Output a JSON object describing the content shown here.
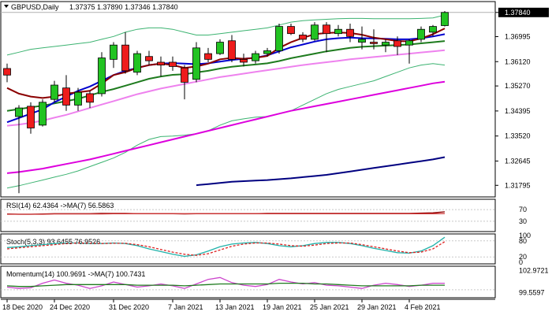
{
  "chart_data": {
    "type": "candlestick",
    "symbol_label": "GBPUSD,Daily",
    "ohlc_label": "1.37375 1.37890 1.37346 1.37840",
    "last_price": 1.3784,
    "x_tick_labels": [
      "18 Dec 2020",
      "24 Dec 2020",
      "31 Dec 2020",
      "7 Jan 2021",
      "13 Jan 2021",
      "19 Jan 2021",
      "25 Jan 2021",
      "29 Jan 2021",
      "4 Feb 2021"
    ],
    "x_tick_bar_index": [
      0,
      4,
      9,
      14,
      18,
      22,
      26,
      30,
      34
    ],
    "price_axis": {
      "ylim": [
        1.3139,
        1.3822
      ],
      "ticks": [
        1.3784,
        1.36995,
        1.3612,
        1.3527,
        1.34395,
        1.3352,
        1.32645,
        1.31795
      ],
      "tick_labels": [
        "1.37840",
        "1.36995",
        "1.36120",
        "1.35270",
        "1.34395",
        "1.33520",
        "1.32645",
        "1.31795"
      ]
    },
    "candles": [
      {
        "o": 1.3588,
        "h": 1.3605,
        "l": 1.354,
        "c": 1.3565
      },
      {
        "o": 1.342,
        "h": 1.346,
        "l": 1.3152,
        "c": 1.345
      },
      {
        "o": 1.3456,
        "h": 1.347,
        "l": 1.336,
        "c": 1.338
      },
      {
        "o": 1.339,
        "h": 1.348,
        "l": 1.3385,
        "c": 1.347
      },
      {
        "o": 1.348,
        "h": 1.3545,
        "l": 1.347,
        "c": 1.353
      },
      {
        "o": 1.352,
        "h": 1.3565,
        "l": 1.344,
        "c": 1.346
      },
      {
        "o": 1.346,
        "h": 1.352,
        "l": 1.344,
        "c": 1.3505
      },
      {
        "o": 1.35,
        "h": 1.351,
        "l": 1.345,
        "c": 1.347
      },
      {
        "o": 1.35,
        "h": 1.3645,
        "l": 1.349,
        "c": 1.3625
      },
      {
        "o": 1.362,
        "h": 1.368,
        "l": 1.359,
        "c": 1.367
      },
      {
        "o": 1.367,
        "h": 1.3715,
        "l": 1.357,
        "c": 1.358
      },
      {
        "o": 1.3575,
        "h": 1.365,
        "l": 1.3565,
        "c": 1.364
      },
      {
        "o": 1.363,
        "h": 1.365,
        "l": 1.36,
        "c": 1.3615
      },
      {
        "o": 1.361,
        "h": 1.363,
        "l": 1.356,
        "c": 1.36
      },
      {
        "o": 1.361,
        "h": 1.363,
        "l": 1.358,
        "c": 1.3595
      },
      {
        "o": 1.359,
        "h": 1.36,
        "l": 1.348,
        "c": 1.354
      },
      {
        "o": 1.355,
        "h": 1.368,
        "l": 1.354,
        "c": 1.366
      },
      {
        "o": 1.364,
        "h": 1.366,
        "l": 1.361,
        "c": 1.362
      },
      {
        "o": 1.364,
        "h": 1.369,
        "l": 1.3635,
        "c": 1.368
      },
      {
        "o": 1.3685,
        "h": 1.3705,
        "l": 1.361,
        "c": 1.362
      },
      {
        "o": 1.362,
        "h": 1.364,
        "l": 1.3595,
        "c": 1.361
      },
      {
        "o": 1.3615,
        "h": 1.365,
        "l": 1.3605,
        "c": 1.364
      },
      {
        "o": 1.364,
        "h": 1.366,
        "l": 1.363,
        "c": 1.365
      },
      {
        "o": 1.365,
        "h": 1.3745,
        "l": 1.364,
        "c": 1.3735
      },
      {
        "o": 1.3735,
        "h": 1.3745,
        "l": 1.3705,
        "c": 1.371
      },
      {
        "o": 1.3705,
        "h": 1.3715,
        "l": 1.368,
        "c": 1.369
      },
      {
        "o": 1.369,
        "h": 1.375,
        "l": 1.3685,
        "c": 1.374
      },
      {
        "o": 1.374,
        "h": 1.375,
        "l": 1.3645,
        "c": 1.371
      },
      {
        "o": 1.371,
        "h": 1.374,
        "l": 1.37,
        "c": 1.3725
      },
      {
        "o": 1.3725,
        "h": 1.3745,
        "l": 1.368,
        "c": 1.37
      },
      {
        "o": 1.368,
        "h": 1.3735,
        "l": 1.3655,
        "c": 1.369
      },
      {
        "o": 1.368,
        "h": 1.3725,
        "l": 1.3655,
        "c": 1.3675
      },
      {
        "o": 1.367,
        "h": 1.369,
        "l": 1.3645,
        "c": 1.368
      },
      {
        "o": 1.3685,
        "h": 1.37,
        "l": 1.3635,
        "c": 1.3665
      },
      {
        "o": 1.367,
        "h": 1.369,
        "l": 1.3605,
        "c": 1.3685
      },
      {
        "o": 1.369,
        "h": 1.3735,
        "l": 1.368,
        "c": 1.3725
      },
      {
        "o": 1.3715,
        "h": 1.374,
        "l": 1.37,
        "c": 1.3735
      },
      {
        "o": 1.3738,
        "h": 1.3789,
        "l": 1.3735,
        "c": 1.3784
      }
    ],
    "overlay_lines": [
      {
        "id": "bb-upper",
        "color": "#3cb371",
        "width": 1,
        "values": [
          1.3635,
          1.3645,
          1.3655,
          1.366,
          1.3665,
          1.367,
          1.3675,
          1.368,
          1.369,
          1.37,
          1.3715,
          1.3725,
          1.373,
          1.373,
          1.3725,
          1.3715,
          1.3705,
          1.3705,
          1.371,
          1.3715,
          1.372,
          1.3725,
          1.373,
          1.374,
          1.375,
          1.3755,
          1.3758,
          1.376,
          1.3762,
          1.3763,
          1.3763,
          1.3762,
          1.3762,
          1.3762,
          1.3762,
          1.3763,
          1.3765,
          1.3775
        ]
      },
      {
        "id": "bb-lower",
        "color": "#3cb371",
        "width": 1,
        "values": [
          1.317,
          1.3178,
          1.3188,
          1.3198,
          1.3208,
          1.3218,
          1.323,
          1.3245,
          1.326,
          1.3275,
          1.3295,
          1.332,
          1.334,
          1.335,
          1.3352,
          1.3355,
          1.336,
          1.337,
          1.339,
          1.3405,
          1.3412,
          1.3418,
          1.342,
          1.343,
          1.344,
          1.346,
          1.348,
          1.35,
          1.3515,
          1.3525,
          1.3535,
          1.3545,
          1.356,
          1.3575,
          1.359,
          1.36,
          1.3605,
          1.36
        ]
      },
      {
        "id": "ma-magenta-light",
        "color": "#ee82ee",
        "width": 2,
        "values": [
          1.3388,
          1.3392,
          1.3398,
          1.3406,
          1.3416,
          1.3426,
          1.3438,
          1.345,
          1.3462,
          1.3474,
          1.3486,
          1.3498,
          1.3508,
          1.3518,
          1.3526,
          1.3534,
          1.3542,
          1.355,
          1.3558,
          1.3564,
          1.357,
          1.3576,
          1.3582,
          1.3588,
          1.3594,
          1.36,
          1.3605,
          1.361,
          1.3615,
          1.362,
          1.3624,
          1.3628,
          1.3632,
          1.3636,
          1.364,
          1.3644,
          1.3648,
          1.3652
        ]
      },
      {
        "id": "ma-green",
        "color": "#1e7b1e",
        "width": 2,
        "values": [
          1.344,
          1.3446,
          1.3452,
          1.3458,
          1.3466,
          1.3474,
          1.3482,
          1.3494,
          1.3506,
          1.3516,
          1.3528,
          1.354,
          1.3552,
          1.356,
          1.3566,
          1.3568,
          1.3574,
          1.358,
          1.3588,
          1.3594,
          1.3598,
          1.3602,
          1.3606,
          1.3614,
          1.3624,
          1.3632,
          1.364,
          1.3648,
          1.3654,
          1.366,
          1.3664,
          1.3666,
          1.3668,
          1.367,
          1.3672,
          1.3676,
          1.368,
          1.3684
        ]
      },
      {
        "id": "ma-blue",
        "color": "#0000cd",
        "width": 2,
        "values": [
          1.34,
          1.3415,
          1.343,
          1.3445,
          1.347,
          1.349,
          1.351,
          1.3525,
          1.3545,
          1.3565,
          1.358,
          1.359,
          1.36,
          1.3605,
          1.3607,
          1.3605,
          1.3603,
          1.3606,
          1.3612,
          1.3618,
          1.3622,
          1.3626,
          1.3634,
          1.3648,
          1.3662,
          1.3672,
          1.3682,
          1.369,
          1.3694,
          1.3696,
          1.3694,
          1.3693,
          1.3692,
          1.369,
          1.369,
          1.3694,
          1.37,
          1.3708
        ]
      },
      {
        "id": "ma-darkred",
        "color": "#8b0000",
        "width": 2,
        "values": [
          1.352,
          1.35,
          1.349,
          1.3485,
          1.349,
          1.35,
          1.3505,
          1.351,
          1.3535,
          1.3565,
          1.3575,
          1.359,
          1.36,
          1.3605,
          1.36,
          1.359,
          1.3595,
          1.3605,
          1.362,
          1.3625,
          1.3622,
          1.3625,
          1.3632,
          1.366,
          1.368,
          1.3695,
          1.3708,
          1.3712,
          1.3714,
          1.3712,
          1.3706,
          1.3696,
          1.369,
          1.3684,
          1.3683,
          1.3693,
          1.3708,
          1.3728
        ]
      },
      {
        "id": "ma-magenta",
        "color": "#dd00dd",
        "width": 2,
        "values": [
          1.3222,
          1.3226,
          1.3232,
          1.3238,
          1.3246,
          1.3254,
          1.3262,
          1.327,
          1.328,
          1.329,
          1.33,
          1.331,
          1.332,
          1.333,
          1.334,
          1.335,
          1.336,
          1.337,
          1.338,
          1.339,
          1.34,
          1.341,
          1.342,
          1.343,
          1.344,
          1.3448,
          1.3456,
          1.3464,
          1.3472,
          1.348,
          1.3488,
          1.3496,
          1.3504,
          1.3512,
          1.352,
          1.3528,
          1.3536,
          1.3542
        ]
      },
      {
        "id": "ma-navy",
        "color": "#000080",
        "width": 2,
        "values": [
          null,
          null,
          null,
          null,
          null,
          null,
          null,
          null,
          null,
          null,
          null,
          null,
          null,
          null,
          null,
          null,
          1.318,
          1.3184,
          1.3188,
          1.3192,
          1.3194,
          1.3196,
          1.3198,
          1.3201,
          1.3204,
          1.3208,
          1.3212,
          1.3216,
          1.3222,
          1.3228,
          1.3234,
          1.324,
          1.3246,
          1.3252,
          1.3258,
          1.3264,
          1.327,
          1.3278
        ]
      }
    ],
    "indicators": [
      {
        "title": "RSI(14) 62.4364 ->MA(7) 56.5863",
        "ylim": [
          0,
          100
        ],
        "tick_labels": [
          "70",
          "30"
        ],
        "ticks": [
          70,
          30
        ],
        "levels": [
          70,
          30
        ],
        "lines": [
          {
            "color": "#8b0000",
            "values": [
              55,
              54,
              54,
              55,
              56,
              56,
              56,
              56,
              57,
              57,
              57,
              56,
              56,
              56,
              56,
              55,
              56,
              56,
              56,
              56,
              56,
              56,
              57,
              57,
              57,
              57,
              57,
              57,
              57,
              57,
              57,
              57,
              57,
              57,
              57,
              58,
              59,
              62.4
            ]
          },
          {
            "color": "#cc3333",
            "values": [
              54,
              54,
              54,
              54,
              55,
              55,
              55,
              55,
              55,
              56,
              56,
              56,
              56,
              56,
              56,
              56,
              56,
              56,
              56,
              56,
              56,
              56,
              56,
              56,
              56,
              56,
              56,
              56,
              56,
              56,
              56,
              56,
              56,
              56,
              56,
              56,
              56,
              56.6
            ]
          }
        ]
      },
      {
        "title": "Stoch(5,3,3) 93.6455 76.9526",
        "ylim": [
          0,
          100
        ],
        "tick_labels": [
          "100",
          "80",
          "20",
          "0"
        ],
        "ticks": [
          100,
          80,
          20,
          0
        ],
        "levels": [
          80,
          20
        ],
        "lines": [
          {
            "color": "#20b2aa",
            "values": [
              55,
              58,
              62,
              66,
              70,
              72,
              72,
              70,
              70,
              72,
              70,
              62,
              50,
              40,
              30,
              22,
              28,
              42,
              58,
              68,
              72,
              74,
              70,
              62,
              58,
              62,
              70,
              74,
              74,
              70,
              62,
              52,
              44,
              36,
              34,
              42,
              62,
              93.6
            ]
          },
          {
            "color": "#dd2222",
            "dash": "3 2",
            "values": [
              50,
              54,
              58,
              62,
              66,
              70,
              72,
              71,
              70,
              71,
              71,
              66,
              58,
              48,
              38,
              30,
              26,
              32,
              46,
              60,
              68,
              72,
              72,
              68,
              62,
              60,
              64,
              70,
              72,
              72,
              66,
              58,
              50,
              42,
              36,
              38,
              50,
              77.0
            ]
          }
        ]
      },
      {
        "title": "Momentum(14) 100.9691 ->MA(7) 100.7431",
        "ylim": [
          99.0,
          103.4
        ],
        "tick_labels": [
          "102.9721",
          "99.5597"
        ],
        "ticks": [
          102.9721,
          99.5597
        ],
        "levels": [
          100.0
        ],
        "lines": [
          {
            "color": "#cc44cc",
            "values": [
              100.4,
              100.2,
              100.3,
              101.0,
              101.5,
              101.0,
              100.7,
              100.2,
              100.6,
              101.2,
              100.8,
              100.4,
              100.6,
              100.9,
              100.6,
              100.2,
              100.9,
              101.6,
              101.9,
              101.1,
              100.7,
              100.5,
              100.8,
              101.6,
              101.2,
              100.9,
              101.1,
              100.7,
              100.6,
              100.4,
              100.2,
              100.7,
              101.0,
              100.8,
              100.5,
              100.7,
              101.0,
              101.0
            ]
          },
          {
            "color": "#1e7b1e",
            "values": [
              100.6,
              100.5,
              100.5,
              100.6,
              100.7,
              100.8,
              100.8,
              100.8,
              100.8,
              100.8,
              100.8,
              100.7,
              100.7,
              100.7,
              100.7,
              100.6,
              100.7,
              100.8,
              100.9,
              100.9,
              100.9,
              100.9,
              100.9,
              101.0,
              101.0,
              101.0,
              100.9,
              100.9,
              100.8,
              100.7,
              100.6,
              100.6,
              100.6,
              100.6,
              100.6,
              100.7,
              100.7,
              100.7
            ]
          }
        ]
      }
    ]
  }
}
